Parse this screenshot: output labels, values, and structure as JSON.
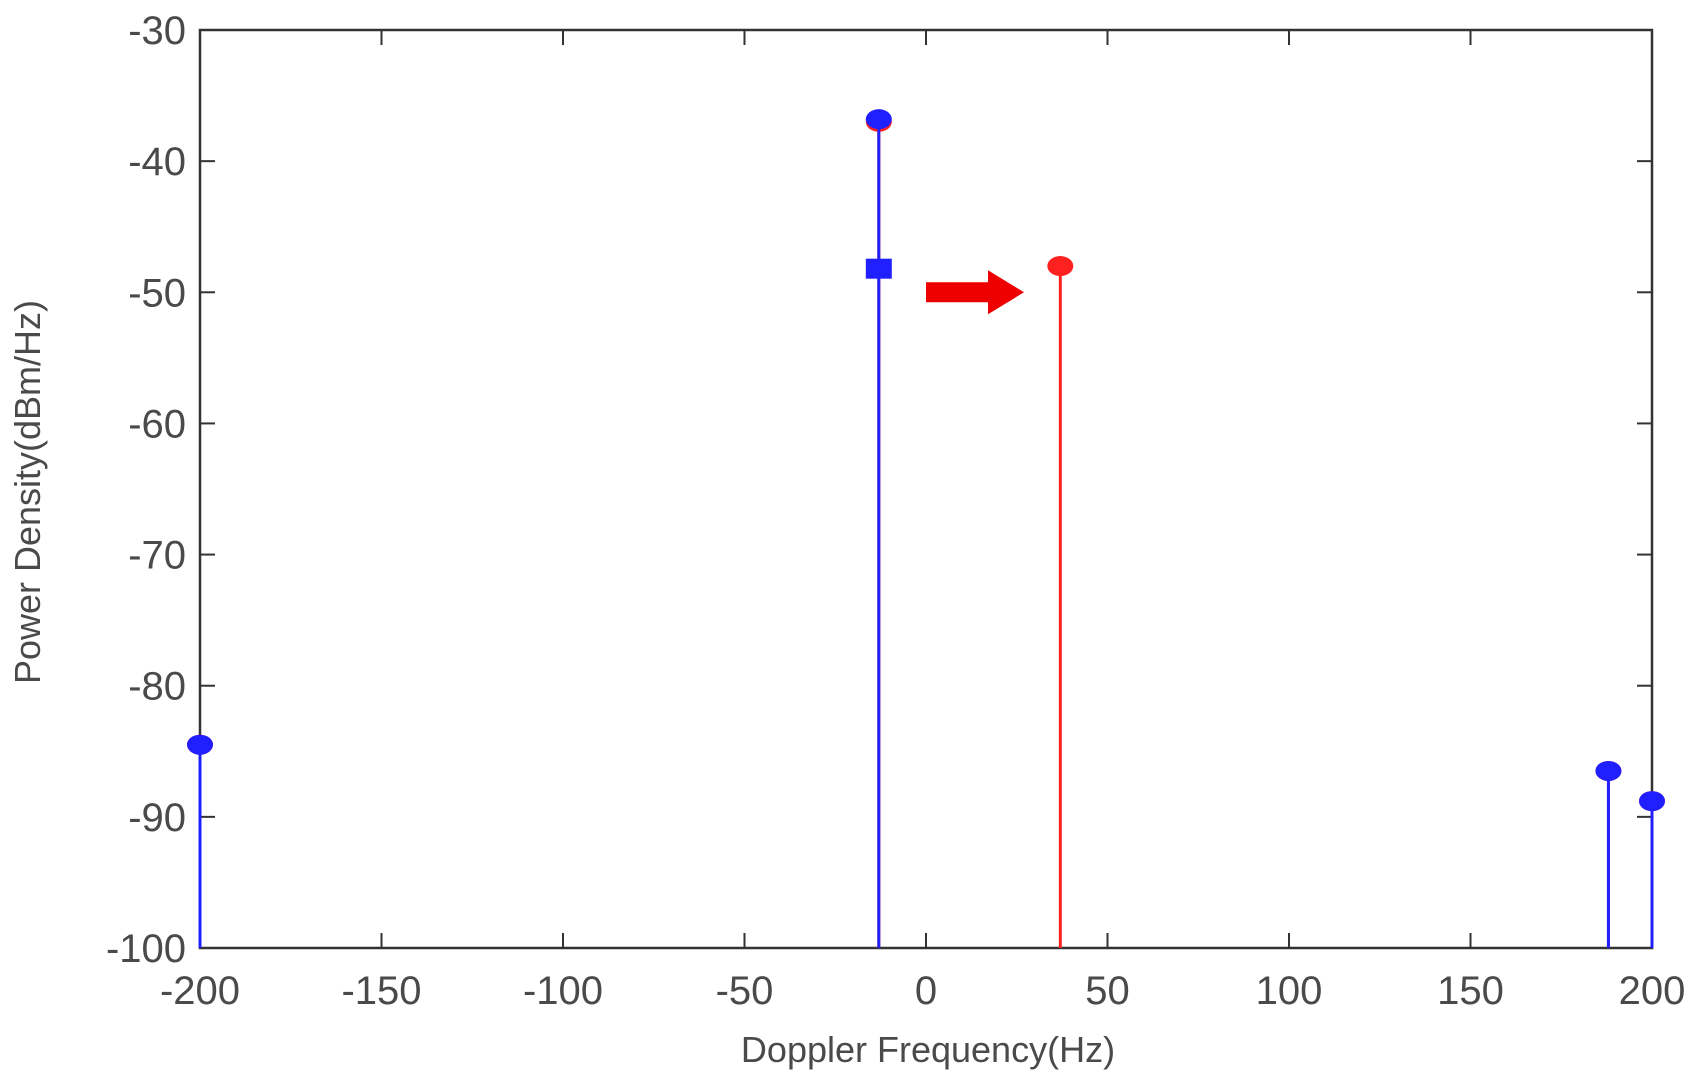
{
  "chart_data": {
    "type": "stem",
    "title": "",
    "xlabel": "Doppler Frequency(Hz)",
    "ylabel": "Power Density(dBm/Hz)",
    "xlim": [
      -200,
      200
    ],
    "ylim": [
      -100,
      -30
    ],
    "xticks": [
      -200,
      -150,
      -100,
      -50,
      0,
      50,
      100,
      150,
      200
    ],
    "yticks": [
      -30,
      -40,
      -50,
      -60,
      -70,
      -80,
      -90,
      -100
    ],
    "grid": false,
    "series": [
      {
        "color": "#ff2020",
        "marker": "circle",
        "points": [
          {
            "x": -200,
            "y": -84.5
          },
          {
            "x": -13,
            "y": -37
          },
          {
            "x": 37,
            "y": -48
          },
          {
            "x": 188,
            "y": -86.5
          },
          {
            "x": 200,
            "y": -88.8
          }
        ]
      },
      {
        "color": "#2020ff",
        "marker": "circle",
        "points": [
          {
            "x": -200,
            "y": -84.5
          },
          {
            "x": -13,
            "y": -36.8
          },
          {
            "x": 188,
            "y": -86.5
          },
          {
            "x": 200,
            "y": -88.8
          }
        ]
      },
      {
        "color": "#2020ff",
        "marker": "square",
        "points": [
          {
            "x": -13,
            "y": -48.2
          }
        ]
      }
    ],
    "annotations": [
      {
        "type": "arrow",
        "color": "#ee0000",
        "from": {
          "x": 0,
          "y": -50
        },
        "to": {
          "x": 27,
          "y": -50
        }
      }
    ]
  }
}
